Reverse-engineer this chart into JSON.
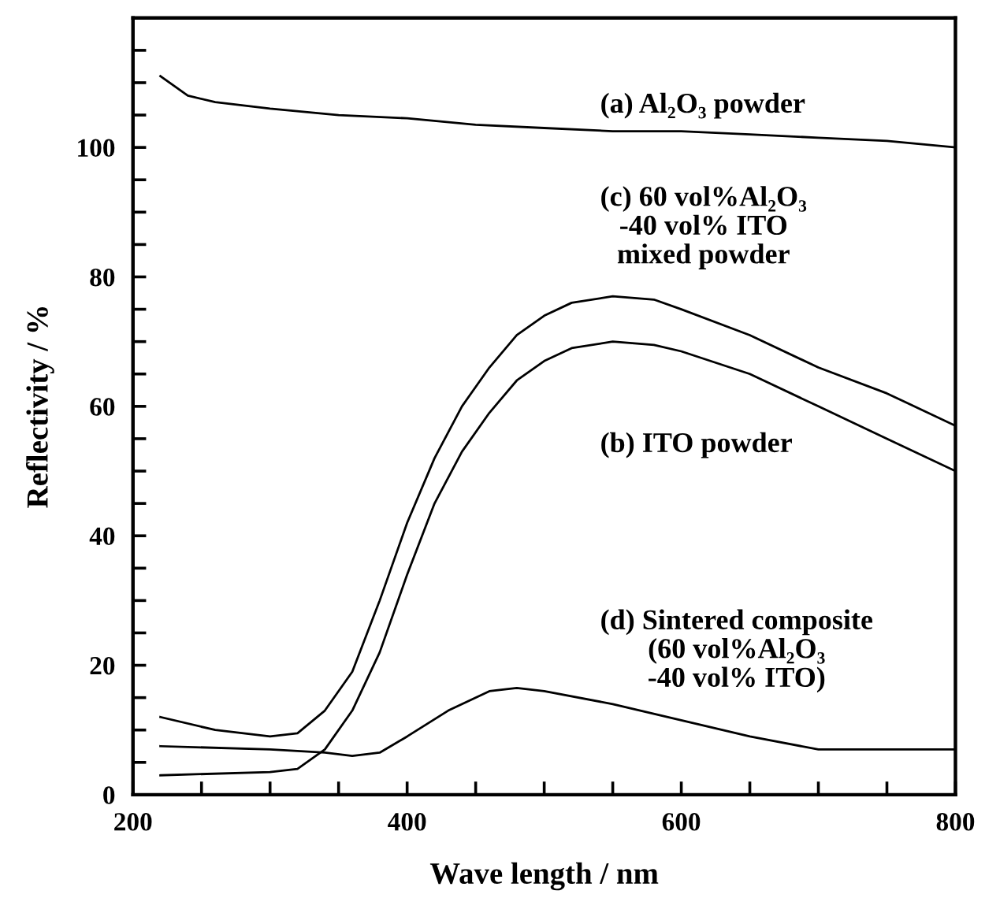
{
  "chart_data": {
    "type": "line",
    "xlabel": "Wave length / nm",
    "ylabel": "Reflectivity / %",
    "xlim": [
      200,
      800
    ],
    "ylim": [
      0,
      120
    ],
    "xticks": [
      200,
      {
        "value": 250,
        "label": null
      },
      400,
      {
        "value": 300,
        "label": null
      },
      {
        "value": 350,
        "label": null
      },
      {
        "value": 450,
        "label": null
      },
      {
        "value": 500,
        "label": null
      },
      {
        "value": 550,
        "label": null
      },
      600,
      {
        "value": 650,
        "label": null
      },
      {
        "value": 700,
        "label": null
      },
      {
        "value": 750,
        "label": null
      },
      800
    ],
    "yticks": [
      0,
      {
        "value": 5,
        "label": null
      },
      {
        "value": 10,
        "label": null
      },
      {
        "value": 15,
        "label": null
      },
      20,
      {
        "value": 25,
        "label": null
      },
      {
        "value": 30,
        "label": null
      },
      {
        "value": 35,
        "label": null
      },
      40,
      {
        "value": 45,
        "label": null
      },
      {
        "value": 50,
        "label": null
      },
      {
        "value": 55,
        "label": null
      },
      60,
      {
        "value": 65,
        "label": null
      },
      {
        "value": 70,
        "label": null
      },
      {
        "value": 75,
        "label": null
      },
      80,
      {
        "value": 85,
        "label": null
      },
      {
        "value": 90,
        "label": null
      },
      {
        "value": 95,
        "label": null
      },
      100,
      {
        "value": 105,
        "label": null
      },
      {
        "value": 110,
        "label": null
      },
      {
        "value": 115,
        "label": null
      }
    ],
    "grid": false,
    "legend": false,
    "marker": "none",
    "line_style": "solid",
    "series": [
      {
        "name": "(a) Al₂O₃ powder",
        "color": "#000000",
        "x": [
          220,
          240,
          260,
          300,
          350,
          400,
          450,
          500,
          550,
          600,
          650,
          700,
          750,
          800
        ],
        "values": [
          111,
          108,
          107,
          106,
          105,
          104.5,
          103.5,
          103,
          102.5,
          102.5,
          102,
          101.5,
          101,
          100
        ]
      },
      {
        "name": "(b) ITO powder",
        "color": "#000000",
        "x": [
          220,
          300,
          320,
          340,
          360,
          380,
          400,
          420,
          440,
          460,
          480,
          500,
          520,
          550,
          580,
          600,
          650,
          700,
          750,
          800
        ],
        "values": [
          3,
          3.5,
          4,
          7,
          13,
          22,
          34,
          45,
          53,
          59,
          64,
          67,
          69,
          70,
          69.5,
          68.5,
          65,
          60,
          55,
          50
        ]
      },
      {
        "name": "(c) 60 vol%Al₂O₃\n-40 vol% ITO\nmixed powder",
        "color": "#000000",
        "x": [
          220,
          260,
          300,
          320,
          340,
          360,
          380,
          400,
          420,
          440,
          460,
          480,
          500,
          520,
          550,
          580,
          600,
          650,
          700,
          750,
          800
        ],
        "values": [
          12,
          10,
          9,
          9.5,
          13,
          19,
          30,
          42,
          52,
          60,
          66,
          71,
          74,
          76,
          77,
          76.5,
          75,
          71,
          66,
          62,
          57
        ]
      },
      {
        "name": "(d) Sintered composite\n(60 vol%Al₂O₃\n-40 vol% ITO)",
        "color": "#000000",
        "x": [
          220,
          300,
          340,
          360,
          380,
          400,
          430,
          460,
          480,
          500,
          550,
          600,
          650,
          700,
          750,
          800
        ],
        "values": [
          7.5,
          7,
          6.5,
          6,
          6.5,
          9,
          13,
          16,
          16.5,
          16,
          14,
          11.5,
          9,
          7,
          7,
          7
        ]
      }
    ]
  }
}
